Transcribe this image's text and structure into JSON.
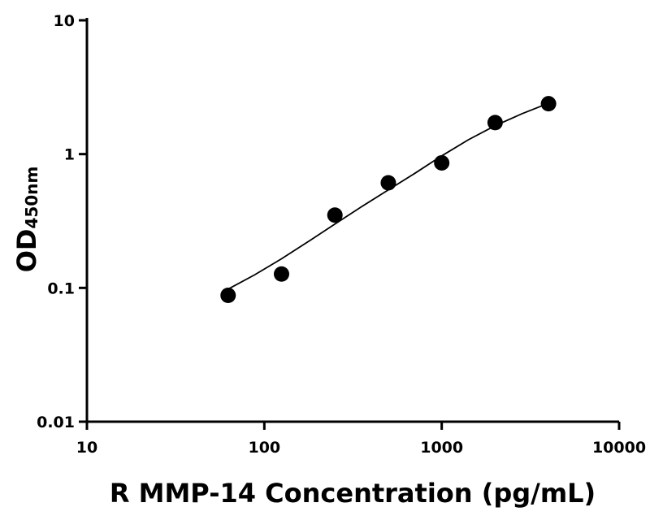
{
  "chart_data": {
    "type": "scatter",
    "xscale": "log",
    "yscale": "log",
    "xlim": [
      10,
      10000
    ],
    "ylim": [
      0.01,
      10
    ],
    "xticks": [
      10,
      100,
      1000,
      10000
    ],
    "yticks": [
      0.01,
      0.1,
      1,
      10
    ],
    "xtick_labels": [
      "10",
      "100",
      "1000",
      "10000"
    ],
    "ytick_labels": [
      "0.01",
      "0.1",
      "1",
      "10"
    ],
    "xlabel": "R MMP-14 Concentration (pg/mL)",
    "ylabel_main": "OD",
    "ylabel_sub": "450nm",
    "grid": false,
    "series": [
      {
        "points": [
          {
            "x": 62.5,
            "y": 0.088
          },
          {
            "x": 125,
            "y": 0.127
          },
          {
            "x": 250,
            "y": 0.35
          },
          {
            "x": 500,
            "y": 0.61
          },
          {
            "x": 1000,
            "y": 0.86
          },
          {
            "x": 2000,
            "y": 1.72
          },
          {
            "x": 4000,
            "y": 2.38
          }
        ],
        "fit_curve": [
          {
            "x": 62.5,
            "y": 0.098
          },
          {
            "x": 88,
            "y": 0.125
          },
          {
            "x": 125,
            "y": 0.165
          },
          {
            "x": 177,
            "y": 0.222
          },
          {
            "x": 250,
            "y": 0.3
          },
          {
            "x": 354,
            "y": 0.405
          },
          {
            "x": 500,
            "y": 0.54
          },
          {
            "x": 707,
            "y": 0.72
          },
          {
            "x": 1000,
            "y": 0.97
          },
          {
            "x": 1414,
            "y": 1.28
          },
          {
            "x": 2000,
            "y": 1.63
          },
          {
            "x": 2828,
            "y": 2.0
          },
          {
            "x": 4000,
            "y": 2.4
          }
        ],
        "marker_color": "#000000",
        "line_color": "#000000"
      }
    ]
  }
}
